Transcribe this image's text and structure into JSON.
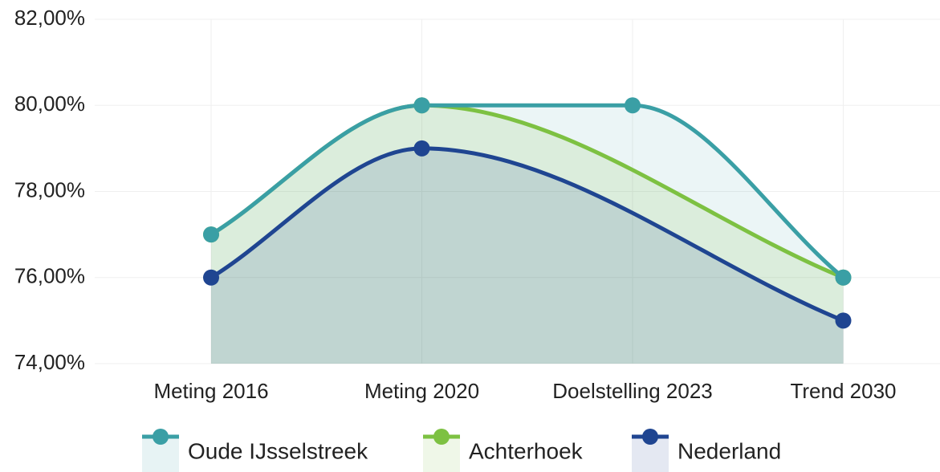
{
  "chart_data": {
    "type": "line",
    "area": true,
    "span_gaps": true,
    "grid": true,
    "legend": "bottom",
    "categories": [
      "Meting 2016",
      "Meting 2020",
      "Doelstelling 2023",
      "Trend 2030"
    ],
    "series": [
      {
        "name": "Oude IJsselstreek",
        "color": "#3a9fa5",
        "values": [
          77,
          80,
          80,
          76
        ]
      },
      {
        "name": "Achterhoek",
        "color": "#7dc142",
        "values": [
          77,
          80,
          null,
          76
        ]
      },
      {
        "name": "Nederland",
        "color": "#1f4591",
        "values": [
          76,
          79,
          null,
          75
        ]
      }
    ],
    "ylim": [
      74,
      82
    ],
    "yticks": [
      {
        "value": 74,
        "label": "74,00%"
      },
      {
        "value": 76,
        "label": "76,00%"
      },
      {
        "value": 78,
        "label": "78,00%"
      },
      {
        "value": 80,
        "label": "80,00%"
      },
      {
        "value": 82,
        "label": "82,00%"
      }
    ]
  }
}
